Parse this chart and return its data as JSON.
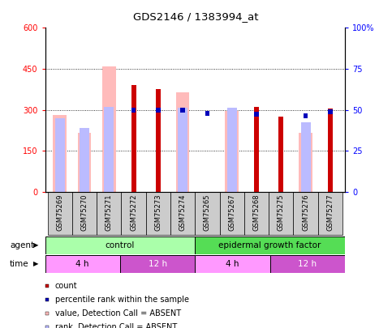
{
  "title": "GDS2146 / 1383994_at",
  "samples": [
    "GSM75269",
    "GSM75270",
    "GSM75271",
    "GSM75272",
    "GSM75273",
    "GSM75274",
    "GSM75265",
    "GSM75267",
    "GSM75268",
    "GSM75275",
    "GSM75276",
    "GSM75277"
  ],
  "count_values": [
    null,
    null,
    null,
    390,
    375,
    null,
    null,
    null,
    310,
    275,
    null,
    305
  ],
  "percentile_values": [
    null,
    null,
    null,
    308,
    308,
    308,
    295,
    null,
    292,
    null,
    288,
    302
  ],
  "absent_value_values": [
    280,
    215,
    460,
    null,
    null,
    365,
    null,
    295,
    null,
    null,
    215,
    null
  ],
  "absent_rank_values": [
    270,
    235,
    310,
    null,
    null,
    307,
    null,
    307,
    null,
    null,
    255,
    null
  ],
  "ylim": [
    0,
    600
  ],
  "yticks_left": [
    0,
    150,
    300,
    450,
    600
  ],
  "ytick_labels_left": [
    "0",
    "150",
    "300",
    "450",
    "600"
  ],
  "ytick_labels_right": [
    "0",
    "25",
    "50",
    "75",
    "100%"
  ],
  "color_count": "#cc0000",
  "color_percentile": "#0000bb",
  "color_absent_value": "#ffbbbb",
  "color_absent_rank": "#bbbbff",
  "agent_control_color": "#aaffaa",
  "agent_egf_color": "#55dd55",
  "time_4h_color": "#ff99ff",
  "time_12h_color": "#cc55cc",
  "legend_items": [
    {
      "label": "count",
      "color": "#cc0000"
    },
    {
      "label": "percentile rank within the sample",
      "color": "#0000bb"
    },
    {
      "label": "value, Detection Call = ABSENT",
      "color": "#ffbbbb"
    },
    {
      "label": "rank, Detection Call = ABSENT",
      "color": "#bbbbff"
    }
  ]
}
